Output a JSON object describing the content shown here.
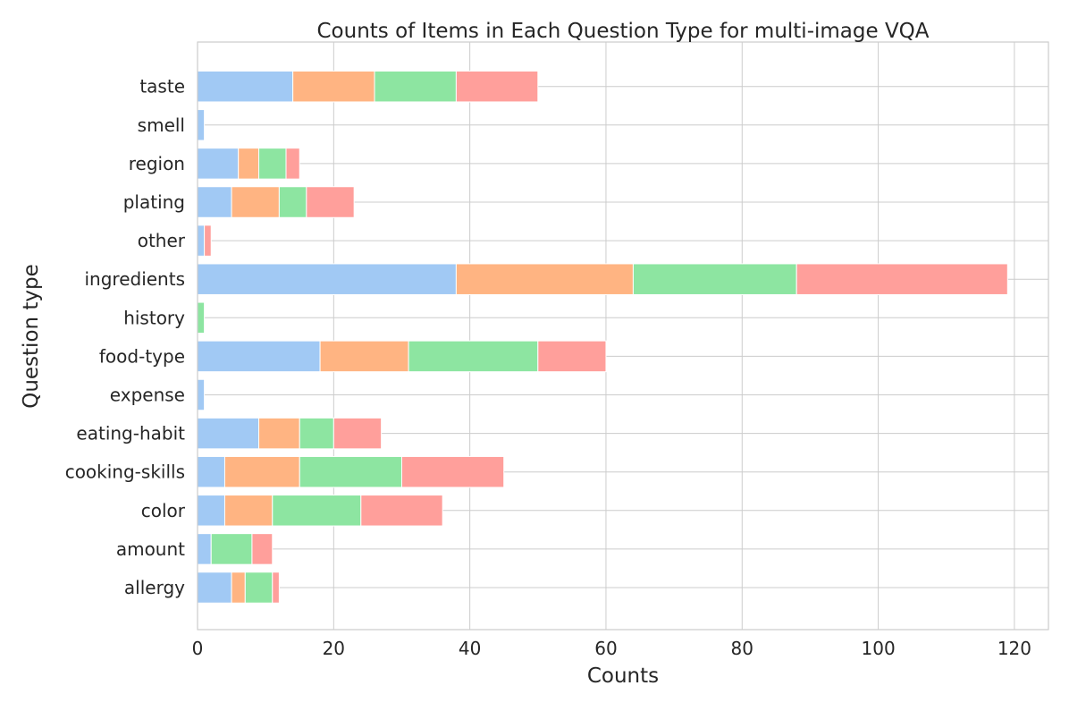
{
  "chart_data": {
    "type": "bar",
    "orientation": "horizontal",
    "stacked": true,
    "title": "Counts of Items in Each Question Type for multi-image VQA",
    "xlabel": "Counts",
    "ylabel": "Question type",
    "xlim": [
      0,
      125
    ],
    "xticks": [
      0,
      20,
      40,
      60,
      80,
      100,
      120
    ],
    "grid": true,
    "categories": [
      "allergy",
      "amount",
      "color",
      "cooking-skills",
      "eating-habit",
      "expense",
      "food-type",
      "history",
      "ingredients",
      "other",
      "plating",
      "region",
      "smell",
      "taste"
    ],
    "series": [
      {
        "color": "#a1c9f4",
        "values": [
          5,
          2,
          4,
          4,
          9,
          1,
          18,
          0,
          38,
          1,
          5,
          6,
          1,
          14
        ]
      },
      {
        "color": "#ffb482",
        "values": [
          2,
          0,
          7,
          11,
          6,
          0,
          13,
          0,
          26,
          0,
          7,
          3,
          0,
          12
        ]
      },
      {
        "color": "#8de5a1",
        "values": [
          4,
          6,
          13,
          15,
          5,
          0,
          19,
          1,
          24,
          0,
          4,
          4,
          0,
          12
        ]
      },
      {
        "color": "#ff9f9b",
        "values": [
          1,
          3,
          12,
          15,
          7,
          0,
          10,
          0,
          31,
          1,
          7,
          2,
          0,
          12
        ]
      }
    ]
  }
}
